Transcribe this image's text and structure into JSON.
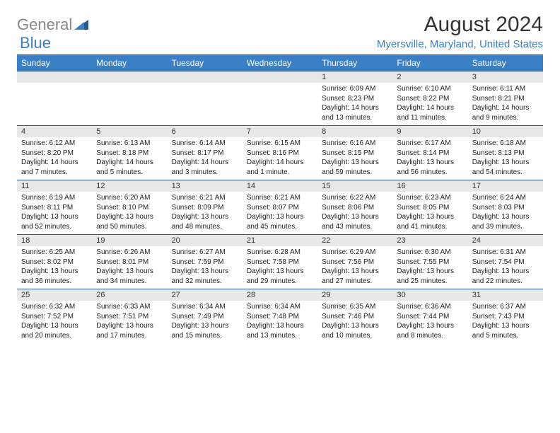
{
  "logo": {
    "general": "General",
    "blue": "Blue"
  },
  "title": "August 2024",
  "location": "Myersville, Maryland, United States",
  "columns": [
    "Sunday",
    "Monday",
    "Tuesday",
    "Wednesday",
    "Thursday",
    "Friday",
    "Saturday"
  ],
  "header_bg": "#3b7fc4",
  "daynum_bg": "#e8e8e8",
  "border_color": "#2a5a8a",
  "weeks": [
    [
      null,
      null,
      null,
      null,
      {
        "n": "1",
        "sr": "6:09 AM",
        "ss": "8:23 PM",
        "dl": "14 hours and 13 minutes."
      },
      {
        "n": "2",
        "sr": "6:10 AM",
        "ss": "8:22 PM",
        "dl": "14 hours and 11 minutes."
      },
      {
        "n": "3",
        "sr": "6:11 AM",
        "ss": "8:21 PM",
        "dl": "14 hours and 9 minutes."
      }
    ],
    [
      {
        "n": "4",
        "sr": "6:12 AM",
        "ss": "8:20 PM",
        "dl": "14 hours and 7 minutes."
      },
      {
        "n": "5",
        "sr": "6:13 AM",
        "ss": "8:18 PM",
        "dl": "14 hours and 5 minutes."
      },
      {
        "n": "6",
        "sr": "6:14 AM",
        "ss": "8:17 PM",
        "dl": "14 hours and 3 minutes."
      },
      {
        "n": "7",
        "sr": "6:15 AM",
        "ss": "8:16 PM",
        "dl": "14 hours and 1 minute."
      },
      {
        "n": "8",
        "sr": "6:16 AM",
        "ss": "8:15 PM",
        "dl": "13 hours and 59 minutes."
      },
      {
        "n": "9",
        "sr": "6:17 AM",
        "ss": "8:14 PM",
        "dl": "13 hours and 56 minutes."
      },
      {
        "n": "10",
        "sr": "6:18 AM",
        "ss": "8:13 PM",
        "dl": "13 hours and 54 minutes."
      }
    ],
    [
      {
        "n": "11",
        "sr": "6:19 AM",
        "ss": "8:11 PM",
        "dl": "13 hours and 52 minutes."
      },
      {
        "n": "12",
        "sr": "6:20 AM",
        "ss": "8:10 PM",
        "dl": "13 hours and 50 minutes."
      },
      {
        "n": "13",
        "sr": "6:21 AM",
        "ss": "8:09 PM",
        "dl": "13 hours and 48 minutes."
      },
      {
        "n": "14",
        "sr": "6:21 AM",
        "ss": "8:07 PM",
        "dl": "13 hours and 45 minutes."
      },
      {
        "n": "15",
        "sr": "6:22 AM",
        "ss": "8:06 PM",
        "dl": "13 hours and 43 minutes."
      },
      {
        "n": "16",
        "sr": "6:23 AM",
        "ss": "8:05 PM",
        "dl": "13 hours and 41 minutes."
      },
      {
        "n": "17",
        "sr": "6:24 AM",
        "ss": "8:03 PM",
        "dl": "13 hours and 39 minutes."
      }
    ],
    [
      {
        "n": "18",
        "sr": "6:25 AM",
        "ss": "8:02 PM",
        "dl": "13 hours and 36 minutes."
      },
      {
        "n": "19",
        "sr": "6:26 AM",
        "ss": "8:01 PM",
        "dl": "13 hours and 34 minutes."
      },
      {
        "n": "20",
        "sr": "6:27 AM",
        "ss": "7:59 PM",
        "dl": "13 hours and 32 minutes."
      },
      {
        "n": "21",
        "sr": "6:28 AM",
        "ss": "7:58 PM",
        "dl": "13 hours and 29 minutes."
      },
      {
        "n": "22",
        "sr": "6:29 AM",
        "ss": "7:56 PM",
        "dl": "13 hours and 27 minutes."
      },
      {
        "n": "23",
        "sr": "6:30 AM",
        "ss": "7:55 PM",
        "dl": "13 hours and 25 minutes."
      },
      {
        "n": "24",
        "sr": "6:31 AM",
        "ss": "7:54 PM",
        "dl": "13 hours and 22 minutes."
      }
    ],
    [
      {
        "n": "25",
        "sr": "6:32 AM",
        "ss": "7:52 PM",
        "dl": "13 hours and 20 minutes."
      },
      {
        "n": "26",
        "sr": "6:33 AM",
        "ss": "7:51 PM",
        "dl": "13 hours and 17 minutes."
      },
      {
        "n": "27",
        "sr": "6:34 AM",
        "ss": "7:49 PM",
        "dl": "13 hours and 15 minutes."
      },
      {
        "n": "28",
        "sr": "6:34 AM",
        "ss": "7:48 PM",
        "dl": "13 hours and 13 minutes."
      },
      {
        "n": "29",
        "sr": "6:35 AM",
        "ss": "7:46 PM",
        "dl": "13 hours and 10 minutes."
      },
      {
        "n": "30",
        "sr": "6:36 AM",
        "ss": "7:44 PM",
        "dl": "13 hours and 8 minutes."
      },
      {
        "n": "31",
        "sr": "6:37 AM",
        "ss": "7:43 PM",
        "dl": "13 hours and 5 minutes."
      }
    ]
  ],
  "labels": {
    "sunrise": "Sunrise:",
    "sunset": "Sunset:",
    "daylight": "Daylight:"
  }
}
